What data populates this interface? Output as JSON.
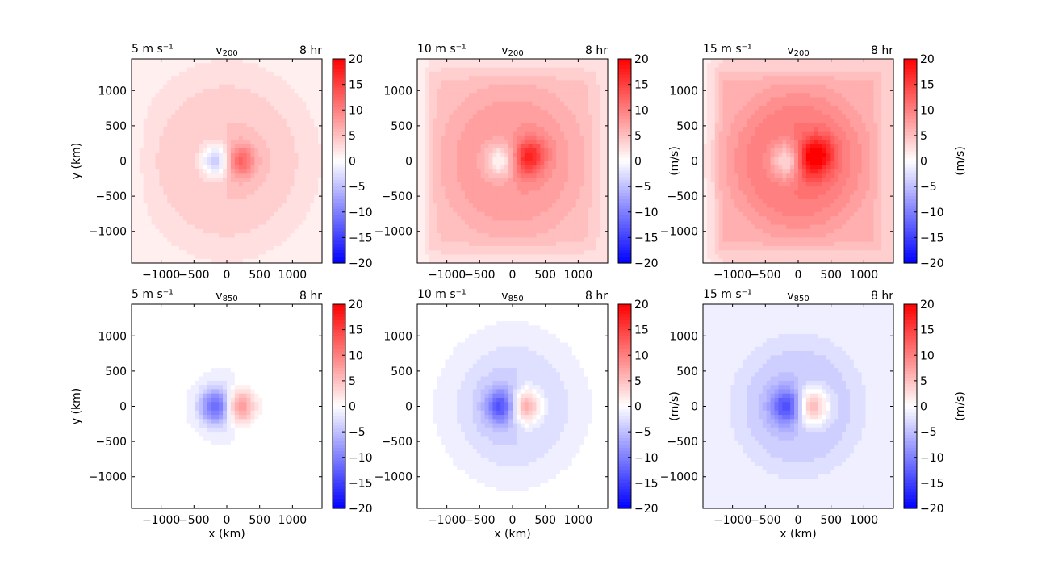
{
  "figure": {
    "background": "#ffffff",
    "colormap": "bwr",
    "colors": {
      "negative": "#0000ff",
      "zero": "#ffffff",
      "positive": "#ff0000"
    }
  },
  "chart_data": [
    {
      "type": "heatmap",
      "title_left": "5 m s⁻¹",
      "title_center": "v",
      "title_center_sub": "200",
      "title_right": "8 hr",
      "xlabel": "",
      "ylabel": "y (km)",
      "xlim": [
        -1450,
        1450
      ],
      "ylim": [
        -1450,
        1450
      ],
      "xticks": [
        -1000,
        -500,
        0,
        500,
        1000
      ],
      "xtick_labels": [
        "−1000",
        "−500",
        "0",
        "500",
        "1000"
      ],
      "yticks": [
        1000,
        500,
        0,
        -500,
        -1000
      ],
      "ytick_labels": [
        "1000",
        "500",
        "0",
        "−500",
        "−1000"
      ],
      "colorbar": {
        "label": "",
        "range": [
          -20,
          20
        ],
        "ticks": [
          20,
          15,
          10,
          5,
          0,
          -5,
          -10,
          -15,
          -20
        ],
        "tick_labels": [
          "20",
          "15",
          "10",
          "5",
          "0",
          "−5",
          "−10",
          "−15",
          "−20"
        ]
      },
      "field": {
        "background": 1.5,
        "blob": 3.0,
        "blobRadius": 1200,
        "square": 0,
        "dipole": 9,
        "dipoleSpread": 170,
        "core": 0,
        "edgeNeg": -0.5
      }
    },
    {
      "type": "heatmap",
      "title_left": "10 m s⁻¹",
      "title_center": "v",
      "title_center_sub": "200",
      "title_right": "8 hr",
      "xlabel": "",
      "ylabel": "",
      "xlim": [
        -1450,
        1450
      ],
      "ylim": [
        -1450,
        1450
      ],
      "xticks": [
        -1000,
        -500,
        0,
        500,
        1000
      ],
      "xtick_labels": [
        "−1000",
        "−500",
        "0",
        "500",
        "1000"
      ],
      "yticks": [
        1000,
        500,
        0,
        -500,
        -1000
      ],
      "ytick_labels": [
        "1000",
        "500",
        "0",
        "−500",
        "−1000"
      ],
      "colorbar": {
        "label": "(m/s)",
        "range": [
          -20,
          20
        ],
        "ticks": [
          20,
          15,
          10,
          5,
          0,
          -5,
          -10,
          -15,
          -20
        ],
        "tick_labels": [
          "20",
          "15",
          "10",
          "5",
          "0",
          "−5",
          "−10",
          "−15",
          "−20"
        ]
      },
      "field": {
        "background": 2.5,
        "blob": 3.5,
        "blobRadius": 1100,
        "square": 2.0,
        "dipole": 8,
        "dipoleSpread": 180,
        "core": 4,
        "edgeNeg": -1.5
      }
    },
    {
      "type": "heatmap",
      "title_left": "15 m s⁻¹",
      "title_center": "v",
      "title_center_sub": "200",
      "title_right": "8 hr",
      "xlabel": "",
      "ylabel": "",
      "xlim": [
        -1450,
        1450
      ],
      "ylim": [
        -1450,
        1450
      ],
      "xticks": [
        -1000,
        -500,
        0,
        500,
        1000
      ],
      "xtick_labels": [
        "−1000",
        "−500",
        "0",
        "500",
        "1000"
      ],
      "yticks": [
        1000,
        500,
        0,
        -500,
        -1000
      ],
      "ytick_labels": [
        "1000",
        "500",
        "0",
        "−500",
        "−1000"
      ],
      "colorbar": {
        "label": "(m/s)",
        "range": [
          -20,
          20
        ],
        "ticks": [
          20,
          15,
          10,
          5,
          0,
          -5,
          -10,
          -15,
          -20
        ],
        "tick_labels": [
          "20",
          "15",
          "10",
          "5",
          "0",
          "−5",
          "−10",
          "−15",
          "−20"
        ]
      },
      "field": {
        "background": 3.0,
        "blob": 5.0,
        "blobRadius": 1000,
        "square": 3.0,
        "dipole": 9,
        "dipoleSpread": 190,
        "core": 5,
        "edgeNeg": -1.5
      }
    },
    {
      "type": "heatmap",
      "title_left": "5 m s⁻¹",
      "title_center": "v",
      "title_center_sub": "850",
      "title_right": "8 hr",
      "xlabel": "x (km)",
      "ylabel": "y (km)",
      "xlim": [
        -1450,
        1450
      ],
      "ylim": [
        -1450,
        1450
      ],
      "xticks": [
        -1000,
        -500,
        0,
        500,
        1000
      ],
      "xtick_labels": [
        "−1000",
        "−500",
        "0",
        "500",
        "1000"
      ],
      "yticks": [
        1000,
        500,
        0,
        -500,
        -1000
      ],
      "ytick_labels": [
        "1000",
        "500",
        "0",
        "−500",
        "−1000"
      ],
      "colorbar": {
        "label": "",
        "range": [
          -20,
          20
        ],
        "ticks": [
          20,
          15,
          10,
          5,
          0,
          -5,
          -10,
          -15,
          -20
        ],
        "tick_labels": [
          "20",
          "15",
          "10",
          "5",
          "0",
          "−5",
          "−10",
          "−15",
          "−20"
        ]
      },
      "field": {
        "background": -0.3,
        "blob": -1.5,
        "blobRadius": 480,
        "square": 0,
        "dipole": 11,
        "dipoleSpread": 170,
        "core": 0,
        "edgeNeg": 0
      }
    },
    {
      "type": "heatmap",
      "title_left": "10 m s⁻¹",
      "title_center": "v",
      "title_center_sub": "850",
      "title_right": "8 hr",
      "xlabel": "x (km)",
      "ylabel": "",
      "xlim": [
        -1450,
        1450
      ],
      "ylim": [
        -1450,
        1450
      ],
      "xticks": [
        -1000,
        -500,
        0,
        500,
        1000
      ],
      "xtick_labels": [
        "−1000",
        "−500",
        "0",
        "500",
        "1000"
      ],
      "yticks": [
        1000,
        500,
        0,
        -500,
        -1000
      ],
      "ytick_labels": [
        "1000",
        "500",
        "0",
        "−500",
        "−1000"
      ],
      "colorbar": {
        "label": "(m/s)",
        "range": [
          -20,
          20
        ],
        "ticks": [
          20,
          15,
          10,
          5,
          0,
          -5,
          -10,
          -15,
          -20
        ],
        "tick_labels": [
          "20",
          "15",
          "10",
          "5",
          "0",
          "−5",
          "−10",
          "−15",
          "−20"
        ]
      },
      "field": {
        "background": -0.5,
        "blob": -3.0,
        "blobRadius": 900,
        "square": 0,
        "dipole": 11,
        "dipoleSpread": 175,
        "core": 0,
        "edgeNeg": 0
      }
    },
    {
      "type": "heatmap",
      "title_left": "15 m s⁻¹",
      "title_center": "v",
      "title_center_sub": "850",
      "title_right": "8 hr",
      "xlabel": "x (km)",
      "ylabel": "",
      "xlim": [
        -1450,
        1450
      ],
      "ylim": [
        -1450,
        1450
      ],
      "xticks": [
        -1000,
        -500,
        0,
        500,
        1000
      ],
      "xtick_labels": [
        "−1000",
        "−500",
        "0",
        "500",
        "1000"
      ],
      "yticks": [
        1000,
        500,
        0,
        -500,
        -1000
      ],
      "ytick_labels": [
        "1000",
        "500",
        "0",
        "−500",
        "−1000"
      ],
      "colorbar": {
        "label": "(m/s)",
        "range": [
          -20,
          20
        ],
        "ticks": [
          20,
          15,
          10,
          5,
          0,
          -5,
          -10,
          -15,
          -20
        ],
        "tick_labels": [
          "20",
          "15",
          "10",
          "5",
          "0",
          "−5",
          "−10",
          "−15",
          "−20"
        ]
      },
      "field": {
        "background": -0.8,
        "blob": -3.5,
        "blobRadius": 1000,
        "square": 0,
        "dipole": 11,
        "dipoleSpread": 185,
        "core": 0,
        "edgeNeg": 0
      }
    }
  ]
}
